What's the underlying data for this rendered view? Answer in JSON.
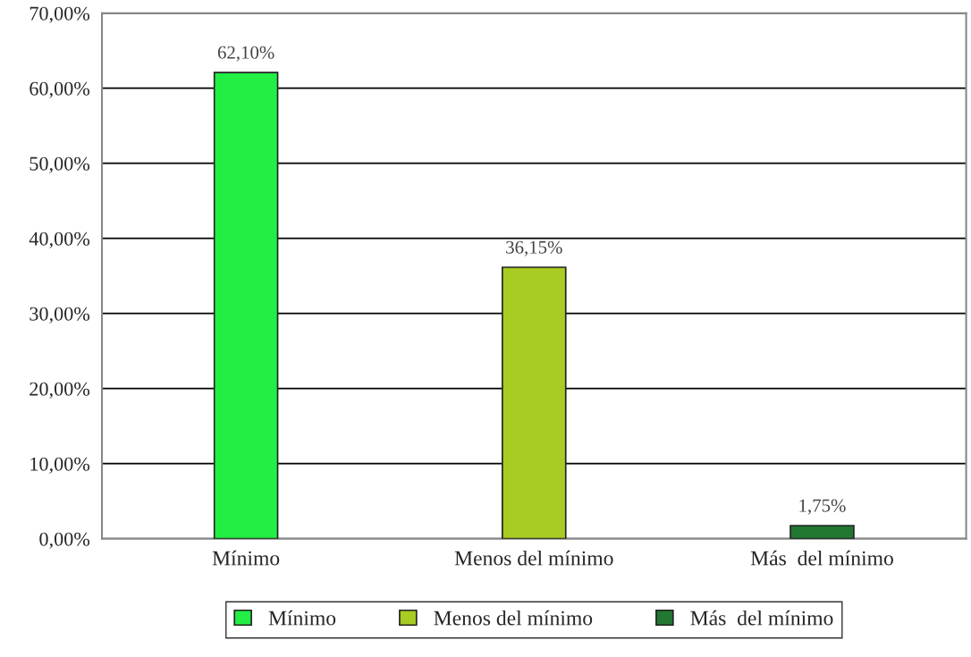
{
  "chart_data": {
    "type": "bar",
    "categories": [
      "Mínimo",
      "Menos del mínimo",
      "Más  del mínimo"
    ],
    "series": [
      {
        "name": "Mínimo",
        "color": "#22ee44",
        "values": [
          62.1,
          null,
          null
        ],
        "value_labels": [
          "62,10%",
          null,
          null
        ]
      },
      {
        "name": "Menos del mínimo",
        "color": "#a8cc22",
        "values": [
          null,
          36.15,
          null
        ],
        "value_labels": [
          null,
          "36,15%",
          null
        ]
      },
      {
        "name": "Más  del mínimo",
        "color": "#227733",
        "values": [
          null,
          null,
          1.75
        ],
        "value_labels": [
          null,
          null,
          "1,75%"
        ]
      }
    ],
    "ylim": [
      0,
      70
    ],
    "yticks": [
      {
        "value": 0,
        "label": "0,00%"
      },
      {
        "value": 10,
        "label": "10,00%"
      },
      {
        "value": 20,
        "label": "20,00%"
      },
      {
        "value": 30,
        "label": "30,00%"
      },
      {
        "value": 40,
        "label": "40,00%"
      },
      {
        "value": 50,
        "label": "50,00%"
      },
      {
        "value": 60,
        "label": "60,00%"
      },
      {
        "value": 70,
        "label": "70,00%"
      }
    ],
    "grid": "y",
    "legend": "bottom"
  }
}
